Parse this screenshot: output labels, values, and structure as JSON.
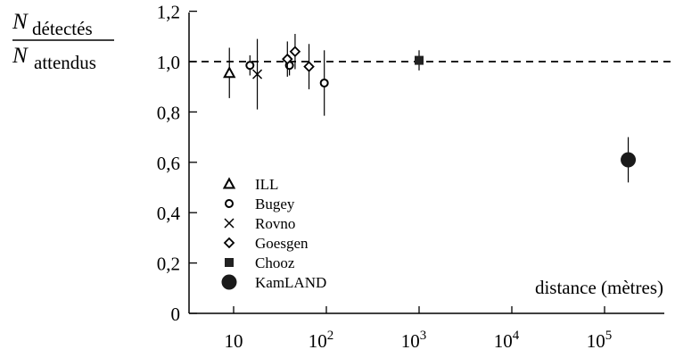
{
  "chart_data": {
    "type": "scatter",
    "title": "",
    "ylabel": {
      "numerator": "N",
      "numerator_sub": "détectés",
      "denominator": "N",
      "denominator_sub": "attendus"
    },
    "xlabel": "distance (mètres)",
    "x_scale": "log",
    "xlim": [
      7,
      500000
    ],
    "ylim": [
      0,
      1.25
    ],
    "y_ticks": [
      {
        "value": 0,
        "label": "0"
      },
      {
        "value": 0.2,
        "label": "0,2"
      },
      {
        "value": 0.4,
        "label": "0,4"
      },
      {
        "value": 0.6,
        "label": "0,6"
      },
      {
        "value": 0.8,
        "label": "0,8"
      },
      {
        "value": 1.0,
        "label": "1,0"
      },
      {
        "value": 1.2,
        "label": "1,2"
      }
    ],
    "x_ticks": [
      {
        "value": 10,
        "base": "10",
        "exp": ""
      },
      {
        "value": 100,
        "base": "10",
        "exp": "2"
      },
      {
        "value": 1000,
        "base": "10",
        "exp": "3"
      },
      {
        "value": 10000,
        "base": "10",
        "exp": "4"
      },
      {
        "value": 100000,
        "base": "10",
        "exp": "5"
      }
    ],
    "reference_line": {
      "y": 1.0,
      "style": "dashed"
    },
    "legend_placement": "bottom-left",
    "series": [
      {
        "name": "ILL",
        "marker": "triangle",
        "points": [
          {
            "x": 9,
            "y": 0.955,
            "err": 0.1
          }
        ]
      },
      {
        "name": "Bugey",
        "marker": "circle",
        "points": [
          {
            "x": 15,
            "y": 0.985,
            "err": 0.04
          },
          {
            "x": 40,
            "y": 0.985,
            "err": 0.04
          },
          {
            "x": 95,
            "y": 0.915,
            "err": 0.13
          }
        ]
      },
      {
        "name": "Rovno",
        "marker": "cross",
        "points": [
          {
            "x": 18,
            "y": 0.95,
            "err": 0.14
          }
        ]
      },
      {
        "name": "Goesgen",
        "marker": "diamond",
        "points": [
          {
            "x": 38,
            "y": 1.01,
            "err": 0.07
          },
          {
            "x": 46,
            "y": 1.04,
            "err": 0.07
          },
          {
            "x": 65,
            "y": 0.98,
            "err": 0.09
          }
        ]
      },
      {
        "name": "Chooz",
        "marker": "square",
        "points": [
          {
            "x": 1000,
            "y": 1.005,
            "err": 0.04
          }
        ]
      },
      {
        "name": "KamLAND",
        "marker": "bigcircle",
        "points": [
          {
            "x": 180000,
            "y": 0.61,
            "err": 0.09
          }
        ]
      }
    ]
  }
}
